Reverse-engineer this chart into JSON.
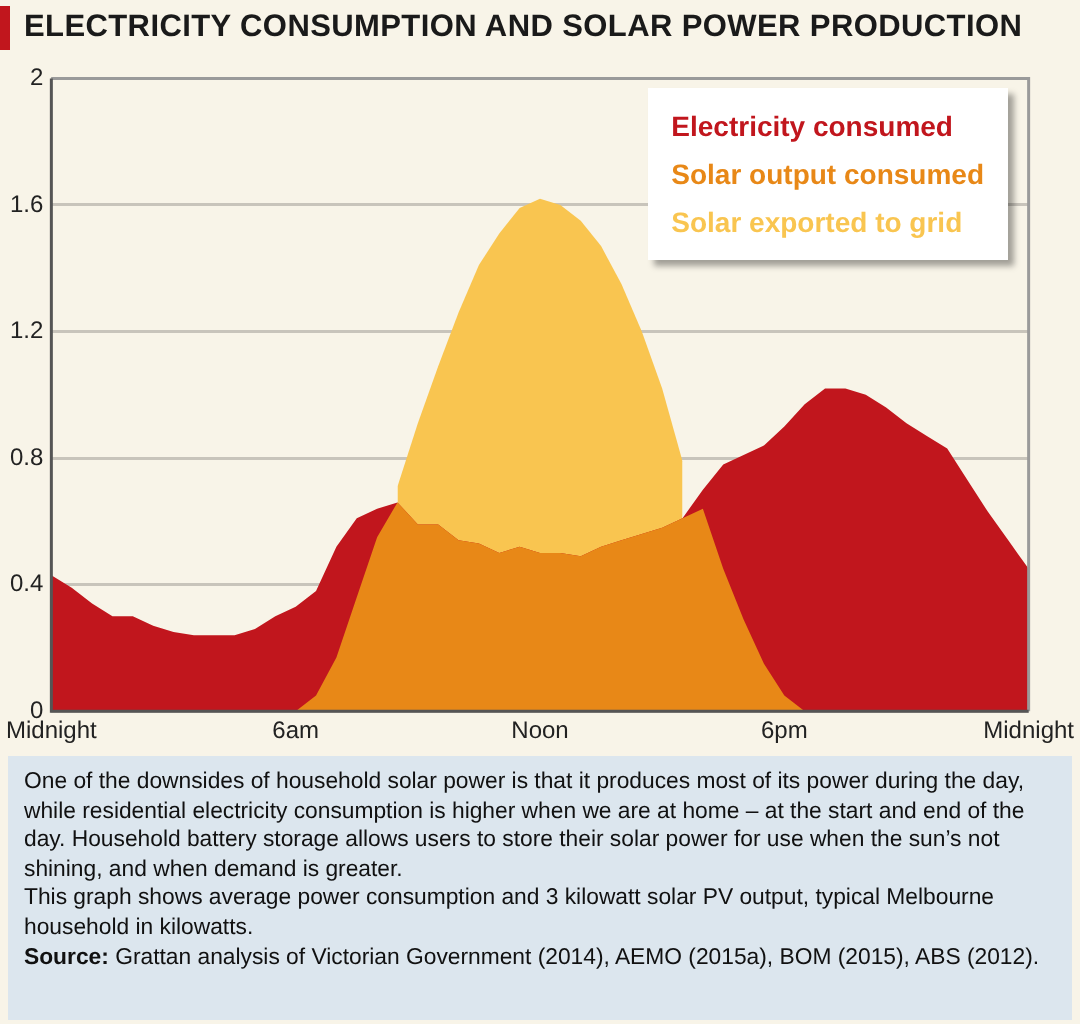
{
  "chart_data": {
    "type": "area",
    "title": "ELECTRICITY CONSUMPTION AND SOLAR POWER PRODUCTION",
    "categories": [
      "Midnight",
      null,
      null,
      null,
      null,
      null,
      null,
      null,
      null,
      null,
      null,
      null,
      "6am",
      null,
      null,
      null,
      null,
      null,
      null,
      null,
      null,
      null,
      null,
      null,
      "Noon",
      null,
      null,
      null,
      null,
      null,
      null,
      null,
      null,
      null,
      null,
      null,
      "6pm",
      null,
      null,
      null,
      null,
      null,
      null,
      null,
      null,
      null,
      null,
      null,
      "Midnight"
    ],
    "ylim": [
      0,
      2
    ],
    "yticks": [
      0,
      0.4,
      0.8,
      1.2,
      1.6,
      2
    ],
    "grid": "y",
    "legend": "top right",
    "series": [
      {
        "name": "Electricity consumed",
        "color": "#c1161d",
        "values": [
          0.43,
          0.39,
          0.34,
          0.3,
          0.3,
          0.27,
          0.25,
          0.24,
          0.24,
          0.24,
          0.26,
          0.3,
          0.33,
          0.38,
          0.52,
          0.61,
          0.64,
          0.66,
          0.59,
          0.59,
          0.54,
          0.53,
          0.5,
          0.52,
          0.5,
          0.5,
          0.49,
          0.52,
          0.54,
          0.56,
          0.58,
          0.61,
          0.7,
          0.78,
          0.81,
          0.84,
          0.9,
          0.97,
          1.02,
          1.02,
          1,
          0.96,
          0.91,
          0.87,
          0.83,
          0.73,
          0.63,
          0.54,
          0.45
        ]
      },
      {
        "name": "Solar output consumed",
        "color": "#e88817",
        "values": [
          0,
          0,
          0,
          0,
          0,
          0,
          0,
          0,
          0,
          0,
          0,
          0,
          0,
          0.05,
          0.17,
          0.36,
          0.55,
          0.66,
          0.59,
          0.59,
          0.54,
          0.53,
          0.5,
          0.52,
          0.5,
          0.5,
          0.49,
          0.52,
          0.54,
          0.56,
          0.58,
          0.61,
          0.64,
          0.45,
          0.29,
          0.15,
          0.05,
          0,
          0,
          0,
          0,
          0,
          0,
          0,
          0,
          0,
          0,
          0,
          0
        ]
      },
      {
        "name": "Solar exported to grid",
        "color": "#f9c550",
        "values": [
          null,
          null,
          null,
          null,
          null,
          null,
          null,
          null,
          null,
          null,
          null,
          null,
          null,
          null,
          null,
          null,
          null,
          0.71,
          0.91,
          1.09,
          1.26,
          1.41,
          1.51,
          1.59,
          1.62,
          1.6,
          1.55,
          1.47,
          1.35,
          1.2,
          1.02,
          0.79,
          null,
          null,
          null,
          null,
          null,
          null,
          null,
          null,
          null,
          null,
          null,
          null,
          null,
          null,
          null,
          null,
          null
        ]
      }
    ],
    "annotations": [
      "One of the downsides of household solar power is that it produces most of its power during the day, while residential electricity consumption is higher when we are at home – at the start and end of the day. Household battery storage allows users to store their solar power for use when the sun’s not shining, and when demand is greater.",
      "This graph shows average power consumption and 3 kilowatt solar PV output, typical Melbourne household in kilowatts.",
      "Source: Grattan analysis of Victorian Government (2014), AEMO (2015a), BOM (2015), ABS (2012)."
    ]
  }
}
